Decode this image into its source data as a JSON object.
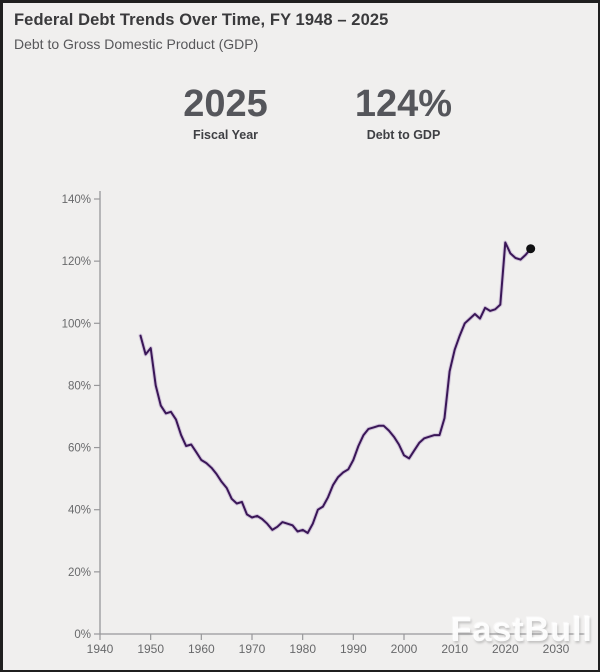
{
  "header": {
    "title": "Federal Debt Trends Over Time, FY 1948 – 2025",
    "subtitle": "Debt to Gross Domestic Product (GDP)"
  },
  "stats": {
    "fiscal_year": {
      "value": "2025",
      "label": "Fiscal Year"
    },
    "debt_to_gdp": {
      "value": "124%",
      "label": "Debt to GDP"
    }
  },
  "watermark": "FastBull",
  "colors": {
    "background": "#f0efee",
    "line": "#3a1657",
    "line_glow": "#9a7cb8",
    "endpoint_dot": "#101012",
    "axis": "#98989a",
    "tick_text": "#68696b"
  },
  "chart_data": {
    "type": "line",
    "title": "Federal Debt Trends Over Time, FY 1948 – 2025",
    "xlabel": "",
    "ylabel": "",
    "grid": false,
    "legend": "none",
    "xlim": [
      1940,
      2030
    ],
    "ylim": [
      0,
      140
    ],
    "x_ticks": [
      1940,
      1950,
      1960,
      1970,
      1980,
      1990,
      2000,
      2010,
      2020,
      2030
    ],
    "x_tick_labels": [
      "1940",
      "1950",
      "1960",
      "1970",
      "1980",
      "1990",
      "2000",
      "2010",
      "2020",
      "2030"
    ],
    "y_ticks": [
      0,
      20,
      40,
      60,
      80,
      100,
      120,
      140
    ],
    "y_tick_labels": [
      "0%",
      "20%",
      "40%",
      "60%",
      "80%",
      "100%",
      "120%",
      "140%"
    ],
    "series_name": "Debt to GDP (%)",
    "x": [
      1948,
      1949,
      1950,
      1951,
      1952,
      1953,
      1954,
      1955,
      1956,
      1957,
      1958,
      1959,
      1960,
      1961,
      1962,
      1963,
      1964,
      1965,
      1966,
      1967,
      1968,
      1969,
      1970,
      1971,
      1972,
      1973,
      1974,
      1975,
      1976,
      1977,
      1978,
      1979,
      1980,
      1981,
      1982,
      1983,
      1984,
      1985,
      1986,
      1987,
      1988,
      1989,
      1990,
      1991,
      1992,
      1993,
      1994,
      1995,
      1996,
      1997,
      1998,
      1999,
      2000,
      2001,
      2002,
      2003,
      2004,
      2005,
      2006,
      2007,
      2008,
      2009,
      2010,
      2011,
      2012,
      2013,
      2014,
      2015,
      2016,
      2017,
      2018,
      2019,
      2020,
      2021,
      2022,
      2023,
      2024,
      2025
    ],
    "values": [
      96,
      90,
      92,
      80,
      73.5,
      71,
      71.5,
      69,
      64,
      60.5,
      61,
      58.5,
      56,
      55,
      53.5,
      51.5,
      49,
      47,
      43.5,
      42,
      42.5,
      38.5,
      37.5,
      38,
      37,
      35.5,
      33.5,
      34.5,
      36,
      35.5,
      35,
      33,
      33.5,
      32.5,
      35.5,
      40,
      41,
      44,
      48,
      50.5,
      52,
      53,
      56,
      60.5,
      64,
      66,
      66.5,
      67,
      67,
      65.5,
      63.5,
      61,
      57.5,
      56.5,
      59,
      61.5,
      63,
      63.5,
      64,
      64,
      69.5,
      84.5,
      91.5,
      96,
      100,
      101.5,
      103,
      101.5,
      105,
      104,
      104.5,
      106,
      126,
      122.5,
      121,
      120.5,
      122,
      124
    ],
    "endpoint_marker": {
      "x": 2025,
      "y": 124
    }
  }
}
